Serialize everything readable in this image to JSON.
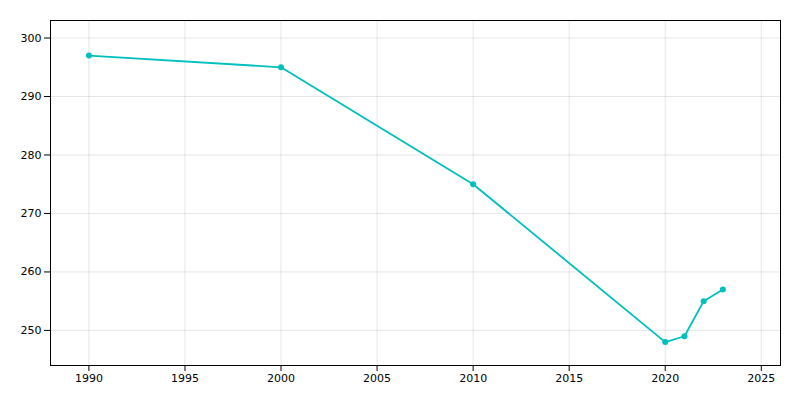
{
  "chart_data": {
    "type": "line",
    "x": [
      1990,
      2000,
      2010,
      2020,
      2021,
      2022,
      2023
    ],
    "values": [
      297,
      295,
      275,
      248,
      249,
      255,
      257
    ],
    "color": "#00BFBF",
    "marker": "circle",
    "xlim": [
      1988,
      2026
    ],
    "ylim": [
      244,
      303
    ],
    "xticks": [
      1990,
      1995,
      2000,
      2005,
      2010,
      2015,
      2020,
      2025
    ],
    "yticks": [
      250,
      260,
      270,
      280,
      290,
      300
    ],
    "grid": true
  }
}
